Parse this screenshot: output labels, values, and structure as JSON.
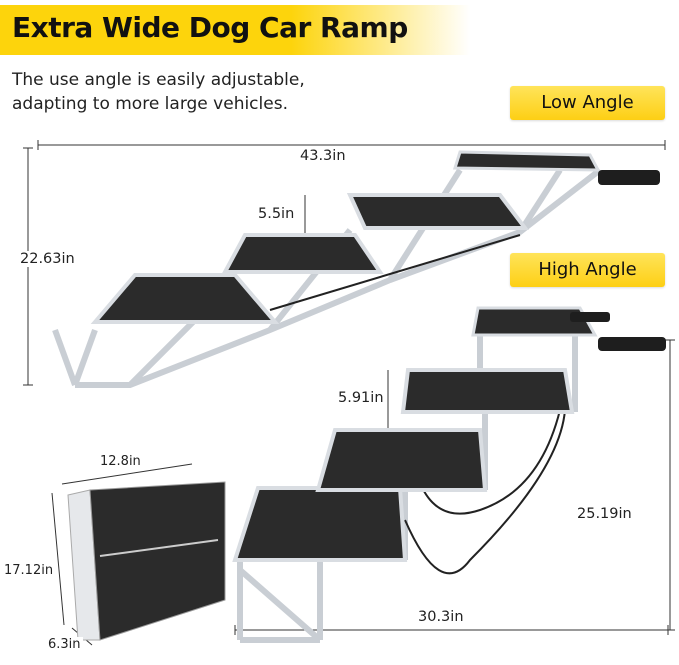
{
  "header": {
    "title": "Extra Wide Dog Car Ramp",
    "subtitle_line1": "The use angle is easily adjustable,",
    "subtitle_line2": "adapting to more large vehicles."
  },
  "low_angle": {
    "label": "Low Angle",
    "length": "43.3in",
    "height": "22.63in",
    "step_rise": "5.5in"
  },
  "high_angle": {
    "label": "High Angle",
    "length": "30.3in",
    "height": "25.19in",
    "step_rise": "5.91in"
  },
  "folded": {
    "width": "12.8in",
    "height": "17.12in",
    "depth": "6.3in"
  },
  "colors": {
    "accent": "#fdd40c",
    "platform": "#2b2b2b",
    "frame": "#d9dde2"
  }
}
